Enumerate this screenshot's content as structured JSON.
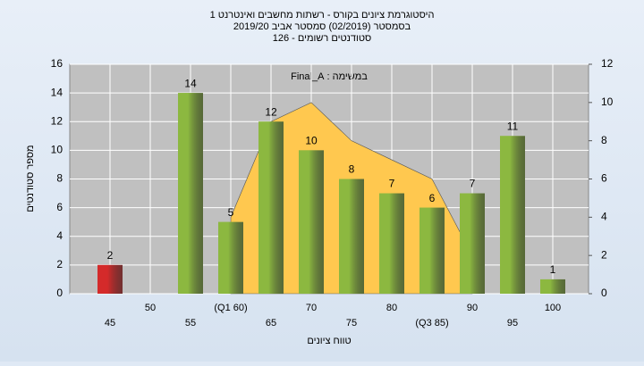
{
  "chart_data": {
    "type": "bar",
    "title_lines": [
      "היסטוגרמת ציונים בקורס - רשתות מחשבים ואינטרנט 1",
      "בסמסטר  (02/2019)  סמסטר אביב 2019/20",
      "סטודנטים רשומים - 126"
    ],
    "annotation": "במשימה : Final_A",
    "x_label": "טווח ציונים",
    "y_label": "מספר סטודנטים",
    "categories": [
      "45",
      "50",
      "55",
      "(Q1 60)",
      "65",
      "70",
      "75",
      "80",
      "(Q3 85)",
      "90",
      "95",
      "100"
    ],
    "series": [
      {
        "values": [
          2,
          null,
          14,
          5,
          12,
          10,
          8,
          7,
          6,
          7,
          11,
          1
        ],
        "colors": [
          "#d42a2a",
          "#8cb840",
          "#8cb840",
          "#8cb840",
          "#8cb840",
          "#8cb840",
          "#8cb840",
          "#8cb840",
          "#8cb840",
          "#8cb840",
          "#8cb840",
          "#8cb840"
        ]
      },
      {
        "type": "area",
        "axis": "y2",
        "color": "#ffc84f",
        "values": [
          null,
          null,
          null,
          4,
          9,
          10,
          8,
          7,
          6,
          2,
          null,
          null
        ]
      }
    ],
    "ylim": [
      0,
      16
    ],
    "yticks": [
      0,
      2,
      4,
      6,
      8,
      10,
      12,
      14,
      16
    ],
    "y2lim": [
      0,
      12
    ],
    "y2ticks": [
      0,
      2,
      4,
      6,
      8,
      10,
      12
    ],
    "grid": true
  }
}
